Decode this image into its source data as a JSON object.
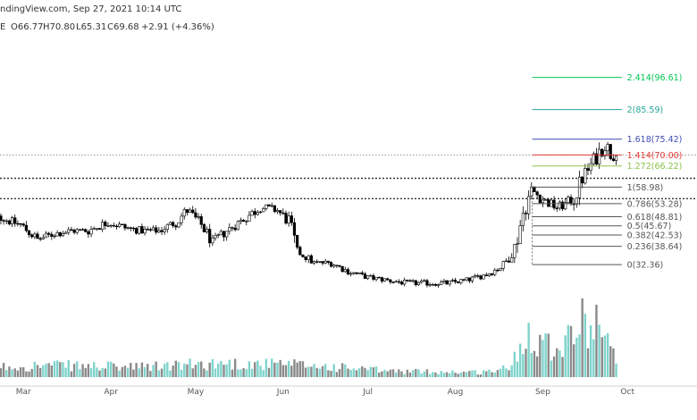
{
  "header": {
    "source_line": "ndingView.com, Sep 27, 2021 10:14 UTC",
    "ohlc_prefix": "E",
    "open": "O66.77",
    "high": "H70.80",
    "low": "L65.31",
    "close": "C69.68",
    "change": "+2.91 (+4.36%)"
  },
  "colors": {
    "up": "#ffffff",
    "down": "#000000",
    "vol_up": "#7fd4cc",
    "vol_down": "#8a8a8a",
    "header_close": "#333333"
  },
  "chart_data": {
    "type": "candlestick",
    "x_axis": {
      "type": "date",
      "start": "2021-02-15",
      "end": "2021-10-06",
      "tick_labels": [
        "Mar",
        "Apr",
        "May",
        "Jun",
        "Jul",
        "Aug",
        "Sep",
        "Oct"
      ],
      "tick_dates": [
        "2021-03-01",
        "2021-04-01",
        "2021-05-01",
        "2021-06-01",
        "2021-07-01",
        "2021-08-01",
        "2021-09-01",
        "2021-10-01"
      ]
    },
    "price_range": [
      14,
      110
    ],
    "price_path": [
      [
        "2021-02-16",
        55
      ],
      [
        "2021-02-22",
        48
      ],
      [
        "2021-02-28",
        46
      ],
      [
        "2021-03-06",
        41
      ],
      [
        "2021-03-12",
        43
      ],
      [
        "2021-03-18",
        44
      ],
      [
        "2021-03-24",
        44
      ],
      [
        "2021-03-31",
        47
      ],
      [
        "2021-04-06",
        45
      ],
      [
        "2021-04-12",
        44
      ],
      [
        "2021-04-18",
        44
      ],
      [
        "2021-04-24",
        47
      ],
      [
        "2021-04-28",
        51
      ],
      [
        "2021-05-03",
        46
      ],
      [
        "2021-05-07",
        40
      ],
      [
        "2021-05-12",
        44
      ],
      [
        "2021-05-18",
        48
      ],
      [
        "2021-05-24",
        52
      ],
      [
        "2021-05-30",
        51
      ],
      [
        "2021-06-03",
        47
      ],
      [
        "2021-06-06",
        37
      ],
      [
        "2021-06-12",
        33
      ],
      [
        "2021-06-18",
        33
      ],
      [
        "2021-06-24",
        30
      ],
      [
        "2021-07-01",
        28
      ],
      [
        "2021-07-08",
        27
      ],
      [
        "2021-07-15",
        26
      ],
      [
        "2021-07-22",
        26
      ],
      [
        "2021-07-29",
        26
      ],
      [
        "2021-08-05",
        27
      ],
      [
        "2021-08-12",
        29
      ],
      [
        "2021-08-18",
        32
      ],
      [
        "2021-08-22",
        38
      ],
      [
        "2021-08-25",
        50
      ],
      [
        "2021-08-28",
        58
      ],
      [
        "2021-09-02",
        54
      ],
      [
        "2021-09-06",
        52
      ],
      [
        "2021-09-09",
        53
      ],
      [
        "2021-09-12",
        55
      ],
      [
        "2021-09-15",
        62
      ],
      [
        "2021-09-19",
        68
      ],
      [
        "2021-09-23",
        74
      ],
      [
        "2021-09-25",
        70
      ],
      [
        "2021-09-27",
        69.68
      ]
    ],
    "volume_path": [
      [
        "2021-02-16",
        10
      ],
      [
        "2021-03-10",
        12
      ],
      [
        "2021-04-10",
        10
      ],
      [
        "2021-05-10",
        14
      ],
      [
        "2021-06-10",
        12
      ],
      [
        "2021-07-10",
        6
      ],
      [
        "2021-08-10",
        5
      ],
      [
        "2021-08-20",
        9
      ],
      [
        "2021-08-27",
        48
      ],
      [
        "2021-09-05",
        30
      ],
      [
        "2021-09-15",
        55
      ],
      [
        "2021-09-22",
        60
      ],
      [
        "2021-09-27",
        12
      ]
    ],
    "volume_max": 100,
    "fib_retracement": {
      "label_date": "2021-09-27",
      "levels": [
        {
          "ratio": "2.414",
          "price": 96.61,
          "color": "#00c853"
        },
        {
          "ratio": "2",
          "price": 85.59,
          "color": "#26a69a"
        },
        {
          "ratio": "1.618",
          "price": 75.42,
          "color": "#3f4bb3"
        },
        {
          "ratio": "1.414",
          "price": 70.0,
          "color": "#e53935"
        },
        {
          "ratio": "1.272",
          "price": 66.22,
          "color": "#8bc34a"
        },
        {
          "ratio": "1",
          "price": 58.98,
          "color": "#555555"
        },
        {
          "ratio": "0.786",
          "price": 53.28,
          "color": "#555555"
        },
        {
          "ratio": "0.618",
          "price": 48.81,
          "color": "#555555"
        },
        {
          "ratio": "0.5",
          "price": 45.67,
          "color": "#555555"
        },
        {
          "ratio": "0.382",
          "price": 42.53,
          "color": "#555555"
        },
        {
          "ratio": "0.236",
          "price": 38.64,
          "color": "#555555"
        },
        {
          "ratio": "0",
          "price": 32.36,
          "color": "#555555"
        }
      ]
    },
    "horizontal_lines": [
      {
        "price": 70.0,
        "style": "dotted"
      },
      {
        "price": 62.0,
        "style": "dotted-thick"
      },
      {
        "price": 55.0,
        "style": "dotted-thick"
      }
    ]
  }
}
